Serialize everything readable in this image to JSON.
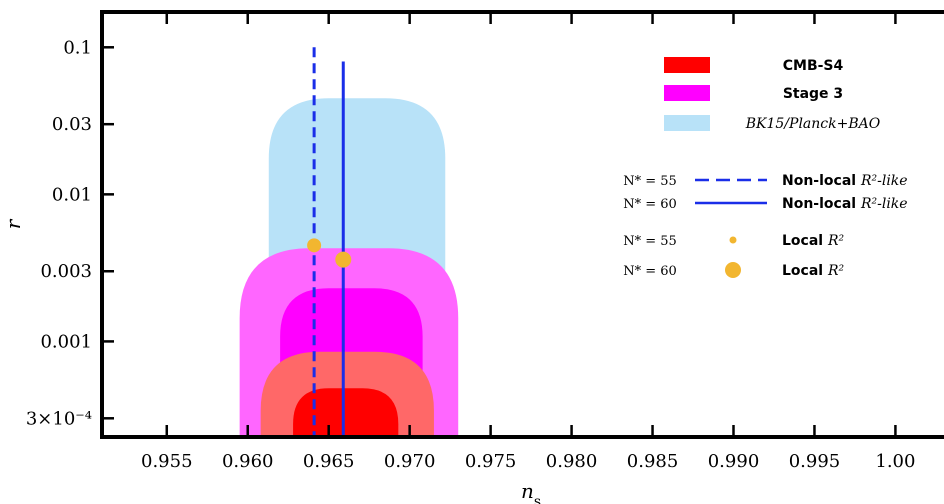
{
  "chart_data": {
    "type": "contour",
    "xlabel": "n_s",
    "ylabel": "r",
    "xlim": [
      0.951,
      1.003
    ],
    "ylim_log10": [
      -3.65,
      -0.76
    ],
    "yscale": "log",
    "x_ticks": [
      0.955,
      0.96,
      0.965,
      0.97,
      0.975,
      0.98,
      0.985,
      0.99,
      0.995,
      1.0
    ],
    "x_tick_labels": [
      "0.955",
      "0.960",
      "0.965",
      "0.970",
      "0.975",
      "0.980",
      "0.985",
      "0.990",
      "0.995",
      "1.00"
    ],
    "y_ticks": [
      0.1,
      0.03,
      0.01,
      0.003,
      0.001,
      0.0003
    ],
    "y_tick_labels": [
      "0.1",
      "0.03",
      "0.01",
      "0.003",
      "0.001",
      "3×10⁻⁴"
    ],
    "regions": [
      {
        "name": "BK15/Planck+BAO",
        "color": "#b8e2f8",
        "ns_range": [
          0.9613,
          0.9722
        ],
        "r_max": 0.045
      },
      {
        "name": "Stage 3 (outer)",
        "color": "#ff66ff",
        "ns_range": [
          0.9595,
          0.973
        ],
        "r_max": 0.0043
      },
      {
        "name": "Stage 3 (inner)",
        "color": "#ff00ff",
        "ns_range": [
          0.962,
          0.9708
        ],
        "r_max": 0.0023
      },
      {
        "name": "CMB-S4 (outer)",
        "color": "#ff6868",
        "ns_range": [
          0.9608,
          0.9715
        ],
        "r_max": 0.00085
      },
      {
        "name": "CMB-S4 (inner)",
        "color": "#ff0000",
        "ns_range": [
          0.9628,
          0.9693
        ],
        "r_max": 0.00048
      }
    ],
    "series": [
      {
        "name": "Non-local R²-like (N* = 55)",
        "style": "dashed",
        "color": "#1a2ee8",
        "x": 0.9641,
        "r_range": [
          0.0,
          0.1
        ]
      },
      {
        "name": "Non-local R²-like (N* = 60)",
        "style": "solid",
        "color": "#1a2ee8",
        "x": 0.9659,
        "r_range": [
          0.0,
          0.08
        ]
      },
      {
        "name": "Local R² (N* = 55)",
        "style": "point",
        "color": "#f2b630",
        "x": 0.9641,
        "y": 0.0045
      },
      {
        "name": "Local R² (N* = 60)",
        "style": "point",
        "color": "#f2b630",
        "x": 0.9659,
        "y": 0.0036
      }
    ],
    "legend": {
      "position": "top-right",
      "fill_entries": [
        {
          "label": "CMB-S4",
          "color": "#ff0000",
          "style": "bold"
        },
        {
          "label": "Stage 3",
          "color": "#ff00ff",
          "style": "bold"
        },
        {
          "label": "BK15/Planck+BAO",
          "color": "#b8e2f8",
          "style": "italic"
        }
      ],
      "line_entries": [
        {
          "n_label": "N* = 55",
          "label": "Non-local",
          "label_math": "R²-like",
          "marker": "dashed"
        },
        {
          "n_label": "N* = 60",
          "label": "Non-local",
          "label_math": "R²-like",
          "marker": "solid"
        },
        {
          "n_label": "N* = 55",
          "label": "Local",
          "label_math": "R²",
          "marker": "small-dot"
        },
        {
          "n_label": "N* = 60",
          "label": "Local",
          "label_math": "R²",
          "marker": "large-dot"
        }
      ]
    }
  }
}
